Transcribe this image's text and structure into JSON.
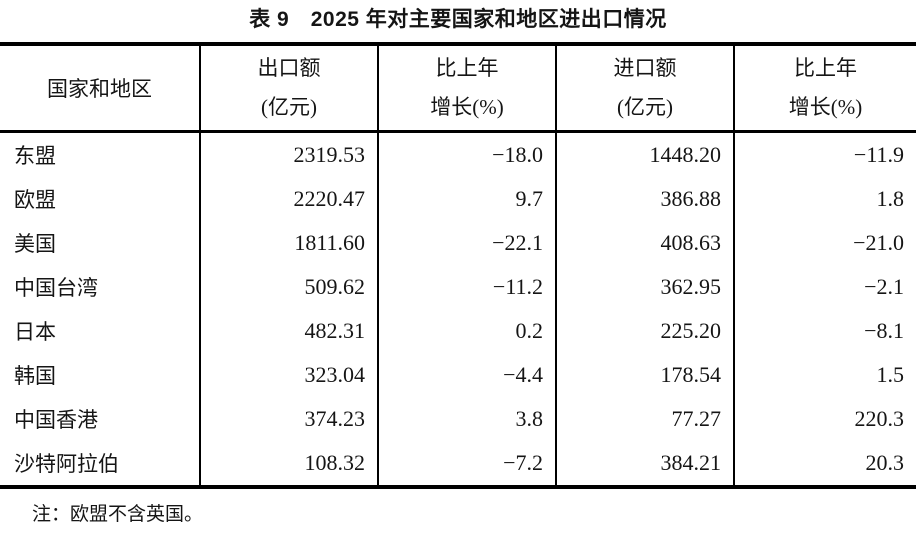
{
  "page": {
    "title": "表 9　2025 年对主要国家和地区进出口情况",
    "note": "注：欧盟不含英国。"
  },
  "table": {
    "corner_header": "国家和地区",
    "columns": [
      {
        "line1": "出口额",
        "line2": "(亿元)"
      },
      {
        "line1": "比上年",
        "line2": "增长(%)"
      },
      {
        "line1": "进口额",
        "line2": "(亿元)"
      },
      {
        "line1": "比上年",
        "line2": "增长(%)"
      }
    ],
    "rows": [
      {
        "region": "东盟",
        "export_value": "2319.53",
        "export_growth": "−18.0",
        "import_value": "1448.20",
        "import_growth": "−11.9"
      },
      {
        "region": "欧盟",
        "export_value": "2220.47",
        "export_growth": "9.7",
        "import_value": "386.88",
        "import_growth": "1.8"
      },
      {
        "region": "美国",
        "export_value": "1811.60",
        "export_growth": "−22.1",
        "import_value": "408.63",
        "import_growth": "−21.0"
      },
      {
        "region": "中国台湾",
        "export_value": "509.62",
        "export_growth": "−11.2",
        "import_value": "362.95",
        "import_growth": "−2.1"
      },
      {
        "region": "日本",
        "export_value": "482.31",
        "export_growth": "0.2",
        "import_value": "225.20",
        "import_growth": "−8.1"
      },
      {
        "region": "韩国",
        "export_value": "323.04",
        "export_growth": "−4.4",
        "import_value": "178.54",
        "import_growth": "1.5"
      },
      {
        "region": "中国香港",
        "export_value": "374.23",
        "export_growth": "3.8",
        "import_value": "77.27",
        "import_growth": "220.3"
      },
      {
        "region": "沙特阿拉伯",
        "export_value": "108.32",
        "export_growth": "−7.2",
        "import_value": "384.21",
        "import_growth": "20.3"
      }
    ]
  }
}
